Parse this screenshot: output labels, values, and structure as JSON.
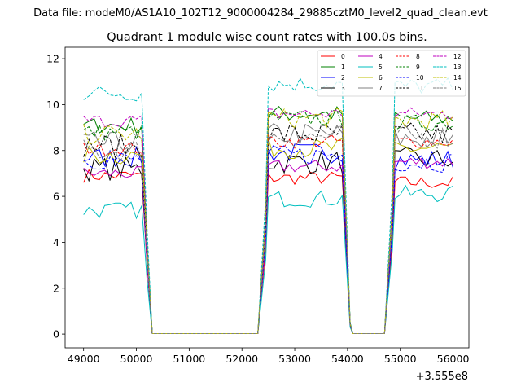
{
  "figure": {
    "suptitle": "Data file: modeM0/AS1A10_102T12_9000004284_29885cztM0_level2_quad_clean.evt",
    "title": "Quadrant 1 module wise count rates with 100.0s bins.",
    "offset_label": "+3.555e8"
  },
  "chart_data": {
    "type": "line",
    "title": "Quadrant 1 module wise count rates with 100.0s bins.",
    "xlabel": "",
    "ylabel": "",
    "x_offset": 355500000,
    "xlim": [
      48650,
      56300
    ],
    "ylim": [
      -0.6,
      12.5
    ],
    "xticks": [
      49000,
      50000,
      51000,
      52000,
      53000,
      54000,
      55000,
      56000
    ],
    "yticks": [
      0,
      2,
      4,
      6,
      8,
      10,
      12
    ],
    "xtick_labels": [
      "49000",
      "50000",
      "51000",
      "52000",
      "53000",
      "54000",
      "55000",
      "56000"
    ],
    "ytick_labels": [
      "0",
      "2",
      "4",
      "6",
      "8",
      "10",
      "12"
    ],
    "legend_position": "top-right",
    "segments": [
      [
        49000,
        50100
      ],
      [
        52500,
        53950
      ],
      [
        54900,
        56000
      ]
    ],
    "series": [
      {
        "name": "0",
        "color": "#ff0000",
        "dash": false,
        "levels": [
          6.9,
          6.8,
          6.6
        ]
      },
      {
        "name": "1",
        "color": "#008000",
        "dash": false,
        "levels": [
          9.1,
          9.6,
          9.4
        ]
      },
      {
        "name": "2",
        "color": "#0000ff",
        "dash": false,
        "levels": [
          7.7,
          7.9,
          7.6
        ]
      },
      {
        "name": "3",
        "color": "#000000",
        "dash": false,
        "levels": [
          7.2,
          7.5,
          7.6
        ]
      },
      {
        "name": "4",
        "color": "#bf00bf",
        "dash": false,
        "levels": [
          7.0,
          7.3,
          7.5
        ]
      },
      {
        "name": "5",
        "color": "#00bfbf",
        "dash": false,
        "levels": [
          5.4,
          5.9,
          6.1
        ]
      },
      {
        "name": "6",
        "color": "#bfbf00",
        "dash": false,
        "levels": [
          7.8,
          8.1,
          8.1
        ]
      },
      {
        "name": "7",
        "color": "#808080",
        "dash": false,
        "levels": [
          8.3,
          8.7,
          8.5
        ]
      },
      {
        "name": "8",
        "color": "#ff0000",
        "dash": true,
        "levels": [
          8.1,
          8.4,
          8.4
        ]
      },
      {
        "name": "9",
        "color": "#008000",
        "dash": true,
        "levels": [
          8.8,
          9.4,
          9.2
        ]
      },
      {
        "name": "10",
        "color": "#0000ff",
        "dash": true,
        "levels": [
          7.6,
          7.8,
          7.5
        ]
      },
      {
        "name": "11",
        "color": "#000000",
        "dash": true,
        "levels": [
          8.2,
          8.7,
          8.7
        ]
      },
      {
        "name": "12",
        "color": "#bf00bf",
        "dash": true,
        "levels": [
          9.3,
          9.6,
          9.6
        ]
      },
      {
        "name": "13",
        "color": "#00bfbf",
        "dash": true,
        "levels": [
          10.5,
          10.9,
          10.8
        ]
      },
      {
        "name": "14",
        "color": "#bfbf00",
        "dash": true,
        "levels": [
          8.7,
          9.4,
          9.3
        ]
      },
      {
        "name": "15",
        "color": "#808080",
        "dash": true,
        "levels": [
          8.0,
          8.6,
          8.6
        ]
      }
    ]
  }
}
